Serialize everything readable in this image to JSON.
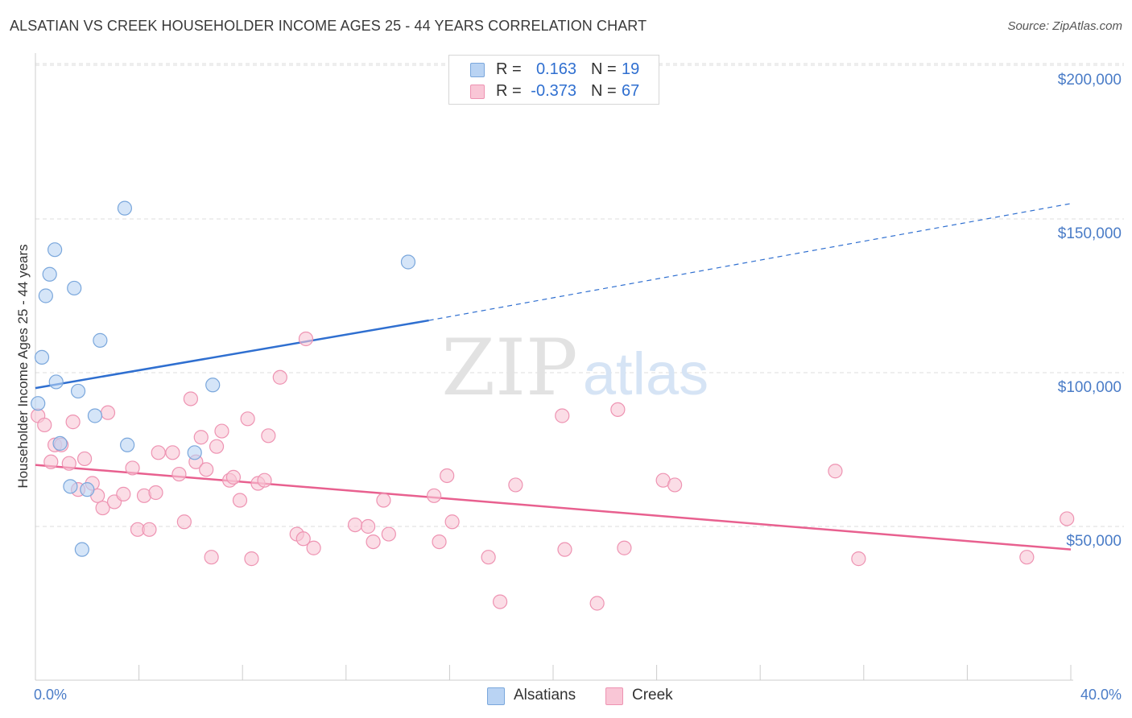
{
  "header": {
    "title": "ALSATIAN VS CREEK HOUSEHOLDER INCOME AGES 25 - 44 YEARS CORRELATION CHART",
    "source": "Source: ZipAtlas.com"
  },
  "watermark": {
    "zip": "ZIP",
    "atlas": "atlas"
  },
  "legend_top": {
    "rows": [
      {
        "r_label": "R =",
        "r_value": "0.163",
        "n_label": "N =",
        "n_value": "19",
        "color": "#5b9bd5"
      },
      {
        "r_label": "R =",
        "r_value": "-0.373",
        "n_label": "N =",
        "n_value": "67",
        "color": "#f48fb1"
      }
    ]
  },
  "legend_bottom": {
    "items": [
      {
        "label": "Alsatians",
        "color": "#5b9bd5"
      },
      {
        "label": "Creek",
        "color": "#f48fb1"
      }
    ]
  },
  "colors": {
    "blue_line": "#2f6fd0",
    "blue_fill": "#b9d3f3",
    "blue_stroke": "#7aa7dc",
    "pink_line": "#e8608f",
    "pink_fill": "#f9c6d6",
    "pink_stroke": "#ee93b2",
    "axis_label": "#4a7cc7",
    "grid": "#dddddd"
  },
  "chart_data": {
    "type": "scatter",
    "title": "ALSATIAN VS CREEK HOUSEHOLDER INCOME AGES 25 - 44 YEARS CORRELATION CHART",
    "xlabel": "",
    "ylabel": "Householder Income Ages 25 - 44 years",
    "xlim": [
      0,
      40
    ],
    "ylim": [
      0,
      205000
    ],
    "x_tick_labels": [
      "0.0%",
      "40.0%"
    ],
    "y_tick_labels": [
      {
        "value": 50000,
        "label": "$50,000"
      },
      {
        "value": 100000,
        "label": "$100,000"
      },
      {
        "value": 150000,
        "label": "$150,000"
      },
      {
        "value": 200000,
        "label": "$200,000"
      }
    ],
    "grid": true,
    "legend_position": "top-center",
    "series": [
      {
        "name": "Alsatians",
        "points": [
          [
            0.1,
            90000
          ],
          [
            0.25,
            105000
          ],
          [
            0.4,
            125000
          ],
          [
            0.55,
            132000
          ],
          [
            0.75,
            140000
          ],
          [
            0.8,
            97000
          ],
          [
            0.95,
            77000
          ],
          [
            1.35,
            63000
          ],
          [
            1.5,
            127500
          ],
          [
            1.65,
            94000
          ],
          [
            1.8,
            42500
          ],
          [
            2.0,
            62000
          ],
          [
            2.3,
            86000
          ],
          [
            2.5,
            110500
          ],
          [
            3.45,
            153500
          ],
          [
            3.55,
            76500
          ],
          [
            6.15,
            74000
          ],
          [
            6.85,
            96000
          ],
          [
            14.4,
            136000
          ]
        ],
        "trend": {
          "x": [
            0,
            15.2,
            40
          ],
          "y": [
            95000,
            117000,
            155000
          ],
          "solid_until": 15.2
        }
      },
      {
        "name": "Creek",
        "points": [
          [
            0.1,
            86000
          ],
          [
            0.35,
            83000
          ],
          [
            0.6,
            71000
          ],
          [
            0.75,
            76500
          ],
          [
            1.0,
            76500
          ],
          [
            1.3,
            70500
          ],
          [
            1.45,
            84000
          ],
          [
            1.65,
            62000
          ],
          [
            1.9,
            72000
          ],
          [
            2.2,
            64000
          ],
          [
            2.4,
            60000
          ],
          [
            2.6,
            56000
          ],
          [
            2.8,
            87000
          ],
          [
            3.05,
            58000
          ],
          [
            3.4,
            60500
          ],
          [
            3.75,
            69000
          ],
          [
            3.95,
            49000
          ],
          [
            4.2,
            60000
          ],
          [
            4.4,
            49000
          ],
          [
            4.65,
            61000
          ],
          [
            4.75,
            74000
          ],
          [
            5.3,
            74000
          ],
          [
            5.55,
            67000
          ],
          [
            5.75,
            51500
          ],
          [
            6.0,
            91500
          ],
          [
            6.2,
            71000
          ],
          [
            6.4,
            79000
          ],
          [
            6.6,
            68500
          ],
          [
            6.8,
            40000
          ],
          [
            7.0,
            76000
          ],
          [
            7.2,
            81000
          ],
          [
            7.5,
            65000
          ],
          [
            7.65,
            66000
          ],
          [
            7.9,
            58500
          ],
          [
            8.2,
            85000
          ],
          [
            8.35,
            39500
          ],
          [
            8.6,
            64000
          ],
          [
            8.85,
            65000
          ],
          [
            9.0,
            79500
          ],
          [
            9.45,
            98500
          ],
          [
            10.1,
            47500
          ],
          [
            10.35,
            46000
          ],
          [
            10.45,
            111000
          ],
          [
            10.75,
            43000
          ],
          [
            12.35,
            50500
          ],
          [
            12.85,
            50000
          ],
          [
            13.05,
            45000
          ],
          [
            13.45,
            58500
          ],
          [
            13.65,
            47500
          ],
          [
            15.4,
            60000
          ],
          [
            15.6,
            45000
          ],
          [
            15.9,
            66500
          ],
          [
            16.1,
            51500
          ],
          [
            17.5,
            40000
          ],
          [
            17.95,
            25500
          ],
          [
            18.55,
            63500
          ],
          [
            20.35,
            86000
          ],
          [
            20.45,
            42500
          ],
          [
            21.7,
            25000
          ],
          [
            22.5,
            88000
          ],
          [
            22.75,
            43000
          ],
          [
            24.25,
            65000
          ],
          [
            24.7,
            63500
          ],
          [
            30.9,
            68000
          ],
          [
            31.8,
            39500
          ],
          [
            38.3,
            40000
          ],
          [
            39.85,
            52500
          ]
        ],
        "trend": {
          "x": [
            0,
            40
          ],
          "y": [
            70000,
            42500
          ]
        }
      }
    ]
  }
}
